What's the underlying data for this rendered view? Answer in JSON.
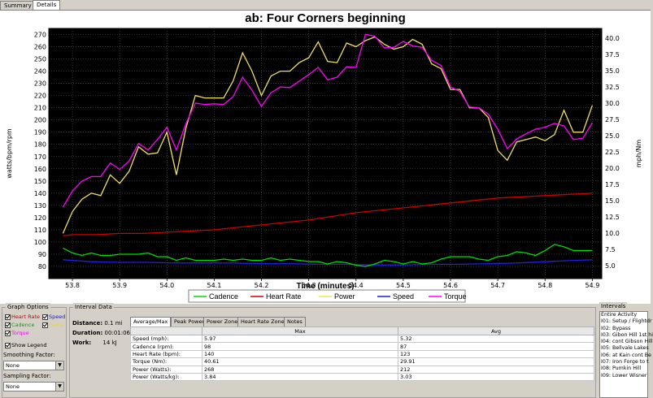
{
  "tabs": [
    {
      "label": "Summary",
      "active": false
    },
    {
      "label": "Details",
      "active": true
    }
  ],
  "chart_data": {
    "type": "line",
    "title": "ab: Four Corners beginning",
    "xlabel": "Time (minutes)",
    "ylabel_left": "watts/bpm/rpm",
    "ylabel_right": "mph/Nm",
    "xlim": [
      53.75,
      54.92
    ],
    "ylim_left": [
      70,
      275
    ],
    "ylim_right": [
      3.0,
      41.5
    ],
    "x_ticks": [
      "53.8",
      "53.9",
      "54.0",
      "54.1",
      "54.2",
      "54.3",
      "54.4",
      "54.5",
      "54.6",
      "54.7",
      "54.8",
      "54.9"
    ],
    "y_ticks_left": [
      "80",
      "90",
      "100",
      "110",
      "120",
      "130",
      "140",
      "150",
      "160",
      "170",
      "180",
      "190",
      "200",
      "210",
      "220",
      "230",
      "240",
      "250",
      "260",
      "270"
    ],
    "y_ticks_right": [
      "5.0",
      "7.5",
      "10.0",
      "12.5",
      "15.0",
      "17.5",
      "20.0",
      "22.5",
      "25.0",
      "27.5",
      "30.0",
      "32.5",
      "35.0",
      "37.5",
      "40.0"
    ],
    "grid": true,
    "legend_position": "bottom",
    "colors": {
      "plot_bg": "#000000",
      "Cadence": "#00dd00",
      "Heart Rate": "#cc0000",
      "Power": "#f0e060",
      "Speed": "#2020e0",
      "Torque": "#ff00ff"
    },
    "series": [
      {
        "name": "Cadence",
        "axis": "left",
        "x": [
          53.78,
          53.8,
          53.82,
          53.84,
          53.86,
          53.88,
          53.9,
          53.92,
          53.94,
          53.96,
          53.98,
          54.0,
          54.02,
          54.04,
          54.06,
          54.08,
          54.1,
          54.12,
          54.14,
          54.16,
          54.18,
          54.2,
          54.22,
          54.24,
          54.26,
          54.28,
          54.3,
          54.32,
          54.34,
          54.36,
          54.38,
          54.4,
          54.42,
          54.44,
          54.46,
          54.48,
          54.5,
          54.52,
          54.54,
          54.56,
          54.58,
          54.6,
          54.62,
          54.64,
          54.66,
          54.68,
          54.7,
          54.72,
          54.74,
          54.76,
          54.78,
          54.8,
          54.82,
          54.84,
          54.86,
          54.88,
          54.9
        ],
        "values": [
          95,
          91,
          89,
          91,
          89,
          89,
          90,
          90,
          90,
          91,
          88,
          88,
          85,
          87,
          85,
          85,
          85,
          86,
          85,
          86,
          85,
          85,
          87,
          85,
          86,
          85,
          84,
          84,
          82,
          84,
          83,
          81,
          80,
          82,
          85,
          84,
          82,
          84,
          82,
          83,
          86,
          88,
          88,
          88,
          86,
          85,
          88,
          89,
          92,
          91,
          89,
          93,
          98,
          96,
          93,
          93,
          93
        ]
      },
      {
        "name": "Heart Rate",
        "axis": "left",
        "x": [
          53.78,
          53.8,
          53.85,
          53.9,
          53.95,
          54.0,
          54.05,
          54.1,
          54.15,
          54.2,
          54.25,
          54.3,
          54.35,
          54.4,
          54.45,
          54.5,
          54.55,
          54.6,
          54.65,
          54.7,
          54.75,
          54.8,
          54.85,
          54.9
        ],
        "values": [
          105,
          106,
          106,
          107,
          107,
          108,
          109,
          110,
          112,
          114,
          116,
          118,
          121,
          124,
          126,
          128,
          130,
          132,
          134,
          136,
          137,
          138,
          139,
          140
        ]
      },
      {
        "name": "Power",
        "axis": "left",
        "x": [
          53.78,
          53.8,
          53.82,
          53.84,
          53.86,
          53.88,
          53.9,
          53.92,
          53.94,
          53.96,
          53.98,
          54.0,
          54.02,
          54.04,
          54.06,
          54.08,
          54.1,
          54.12,
          54.14,
          54.16,
          54.18,
          54.2,
          54.22,
          54.24,
          54.26,
          54.28,
          54.3,
          54.32,
          54.34,
          54.36,
          54.38,
          54.4,
          54.42,
          54.44,
          54.46,
          54.48,
          54.5,
          54.52,
          54.54,
          54.56,
          54.58,
          54.6,
          54.62,
          54.64,
          54.66,
          54.68,
          54.7,
          54.72,
          54.74,
          54.76,
          54.78,
          54.8,
          54.82,
          54.84,
          54.86,
          54.88,
          54.9
        ],
        "values": [
          107,
          125,
          135,
          140,
          138,
          155,
          148,
          158,
          178,
          172,
          173,
          190,
          155,
          193,
          220,
          218,
          218,
          218,
          232,
          255,
          240,
          220,
          236,
          240,
          240,
          247,
          251,
          264,
          248,
          247,
          263,
          260,
          265,
          268,
          262,
          258,
          260,
          266,
          262,
          246,
          242,
          225,
          225,
          210,
          210,
          202,
          175,
          167,
          182,
          184,
          186,
          183,
          188,
          208,
          190,
          190,
          212
        ]
      },
      {
        "name": "Speed",
        "axis": "right",
        "x": [
          53.78,
          53.84,
          53.9,
          53.96,
          54.02,
          54.08,
          54.14,
          54.2,
          54.26,
          54.32,
          54.38,
          54.44,
          54.5,
          54.56,
          54.62,
          54.68,
          54.74,
          54.8,
          54.86,
          54.9
        ],
        "values": [
          5.9,
          5.6,
          5.5,
          5.5,
          5.4,
          5.4,
          5.4,
          5.3,
          5.3,
          5.2,
          5.2,
          5.1,
          5.1,
          5.2,
          5.2,
          5.3,
          5.4,
          5.6,
          5.8,
          5.9
        ]
      },
      {
        "name": "Torque",
        "axis": "right",
        "x": [
          53.78,
          53.8,
          53.82,
          53.84,
          53.86,
          53.88,
          53.9,
          53.92,
          53.94,
          53.96,
          53.98,
          54.0,
          54.02,
          54.04,
          54.06,
          54.08,
          54.1,
          54.12,
          54.14,
          54.16,
          54.18,
          54.2,
          54.22,
          54.24,
          54.26,
          54.28,
          54.3,
          54.32,
          54.34,
          54.36,
          54.38,
          54.4,
          54.42,
          54.44,
          54.46,
          54.48,
          54.5,
          54.52,
          54.54,
          54.56,
          54.58,
          54.6,
          54.62,
          54.64,
          54.66,
          54.68,
          54.7,
          54.72,
          54.74,
          54.76,
          54.78,
          54.8,
          54.82,
          54.84,
          54.86,
          54.88,
          54.9
        ],
        "values": [
          14.0,
          16.5,
          18.0,
          18.7,
          18.7,
          20.8,
          19.8,
          21.1,
          23.8,
          22.8,
          24.4,
          26.3,
          22.8,
          26.8,
          30.0,
          29.8,
          29.9,
          29.8,
          31.0,
          34.0,
          32.0,
          29.5,
          31.6,
          32.5,
          32.4,
          33.4,
          34.4,
          35.5,
          33.6,
          34.0,
          35.6,
          35.5,
          40.6,
          40.3,
          38.5,
          38.6,
          39.5,
          38.8,
          38.6,
          36.6,
          35.8,
          32.5,
          31.8,
          29.4,
          29.3,
          28.3,
          26.0,
          23.0,
          24.5,
          25.3,
          26.0,
          26.3,
          26.9,
          26.5,
          24.4,
          24.6,
          27.0
        ]
      }
    ]
  },
  "graph_options": {
    "title": "Graph Options",
    "checkboxes": [
      {
        "label": "Heart Rate",
        "color": "#cc0000"
      },
      {
        "label": "Speed",
        "color": "#2020e0"
      },
      {
        "label": "Cadence",
        "color": "#00aa00"
      },
      {
        "label": "Power",
        "color": "#e8d040"
      },
      {
        "label": "Torque",
        "color": "#ff00ff"
      },
      {
        "label": "Show Legend",
        "color": "#000000"
      }
    ],
    "smoothing_label": "Smoothing Factor:",
    "smoothing_value": "None",
    "sampling_label": "Sampling Factor:",
    "sampling_value": "None"
  },
  "interval_data": {
    "title": "Interval Data",
    "distance_label": "Distance:",
    "distance_value": "0.1 mi",
    "duration_label": "Duration:",
    "duration_value": "00:01:06",
    "work_label": "Work:",
    "work_value": "14",
    "work_unit": "kJ",
    "subtabs": [
      "Average/Max",
      "Peak Power",
      "Power Zone",
      "Heart Rate Zone",
      "Notes"
    ],
    "columns": [
      "",
      "Max",
      "Avg"
    ],
    "rows": [
      [
        "Speed (mph):",
        "5.97",
        "5.32"
      ],
      [
        "Cadence (rpm):",
        "98",
        "87"
      ],
      [
        "Heart Rate (bpm):",
        "140",
        "123"
      ],
      [
        "Torque (Nm):",
        "40.61",
        "29.91"
      ],
      [
        "Power (Watts):",
        "268",
        "212"
      ],
      [
        "Power (Watts/kg):",
        "3.84",
        "3.03"
      ]
    ]
  },
  "intervals": {
    "title": "Intervals",
    "items": [
      "Entire Activity",
      "I01: Setup / Flightdr",
      "I02: Bypass",
      "I03: Gibon Hill 1st hi",
      "I04: cont Gibson Hill",
      "I05: Bellvale Lakes",
      "I06: at Kain cont Be",
      "I07: Iron Forge to t",
      "I08: Pumkin Hill",
      "I09: Lower Wisner"
    ]
  }
}
